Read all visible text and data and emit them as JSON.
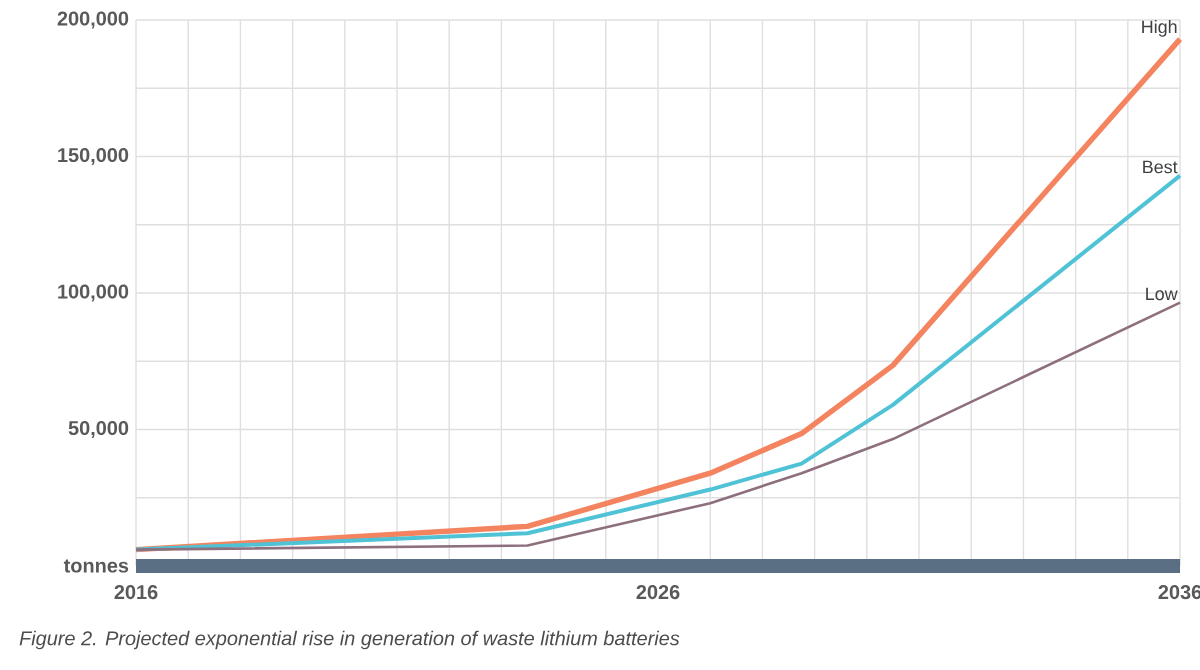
{
  "chart_data": {
    "type": "line",
    "x": [
      2016,
      2023.5,
      2027,
      2028.75,
      2030.5,
      2036
    ],
    "series": [
      {
        "name": "High",
        "color": "#f4845f",
        "values": [
          6000,
          14500,
          34000,
          48500,
          73500,
          193000
        ]
      },
      {
        "name": "Best",
        "color": "#4fc3d5",
        "values": [
          6000,
          12000,
          28000,
          37500,
          59000,
          143000
        ]
      },
      {
        "name": "Low",
        "color": "#8e6f7e",
        "values": [
          6000,
          7500,
          23000,
          34000,
          46500,
          96500
        ]
      }
    ],
    "xlim": [
      2016,
      2036
    ],
    "xticks": [
      2016,
      {
        "value": 2017,
        "label": null
      },
      {
        "value": 2018,
        "label": null
      },
      {
        "value": 2019,
        "label": null
      },
      {
        "value": 2020,
        "label": null
      },
      {
        "value": 2021,
        "label": null
      },
      {
        "value": 2022,
        "label": null
      },
      {
        "value": 2023,
        "label": null
      },
      {
        "value": 2024,
        "label": null
      },
      {
        "value": 2025,
        "label": null
      },
      2026,
      {
        "value": 2027,
        "label": null
      },
      {
        "value": 2028,
        "label": null
      },
      {
        "value": 2029,
        "label": null
      },
      {
        "value": 2030,
        "label": null
      },
      {
        "value": 2031,
        "label": null
      },
      {
        "value": 2032,
        "label": null
      },
      {
        "value": 2033,
        "label": null
      },
      {
        "value": 2034,
        "label": null
      },
      {
        "value": 2035,
        "label": null
      },
      2036
    ],
    "ylim": [
      0,
      200000
    ],
    "yticks": [
      {
        "value": 0,
        "label": "tonnes"
      },
      {
        "value": 25000,
        "label": null
      },
      {
        "value": 50000,
        "label": "50,000"
      },
      {
        "value": 75000,
        "label": null
      },
      {
        "value": 100000,
        "label": "100,000"
      },
      {
        "value": 125000,
        "label": null
      },
      {
        "value": 150000,
        "label": "150,000"
      },
      {
        "value": 175000,
        "label": null
      },
      {
        "value": 200000,
        "label": "200,000"
      }
    ],
    "grid": true,
    "legend": false,
    "annotations": [
      "Figure 2. Projected exponential rise in generation of waste lithium batteries"
    ]
  }
}
